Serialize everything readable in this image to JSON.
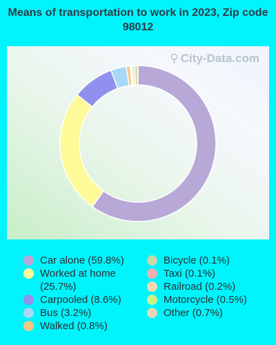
{
  "chart_data": {
    "type": "pie",
    "title": "Means of transportation to work in 2023, Zip code 98012",
    "watermark": "City-Data.com",
    "donut": true,
    "slices": [
      {
        "label": "Car alone",
        "value": 59.8,
        "display": "Car alone (59.8%)",
        "color": "#b8a8d8"
      },
      {
        "label": "Worked at home",
        "value": 25.7,
        "display": "Worked at home (25.7%)",
        "color": "#fffa98"
      },
      {
        "label": "Carpooled",
        "value": 8.6,
        "display": "Carpooled (8.6%)",
        "color": "#9090ee"
      },
      {
        "label": "Bus",
        "value": 3.2,
        "display": "Bus (3.2%)",
        "color": "#a8d8f8"
      },
      {
        "label": "Walked",
        "value": 0.8,
        "display": "Walked (0.8%)",
        "color": "#f8c880"
      },
      {
        "label": "Bicycle",
        "value": 0.1,
        "display": "Bicycle (0.1%)",
        "color": "#c8d8a8"
      },
      {
        "label": "Taxi",
        "value": 0.1,
        "display": "Taxi (0.1%)",
        "color": "#f0b0b0"
      },
      {
        "label": "Railroad",
        "value": 0.2,
        "display": "Railroad (0.2%)",
        "color": "#f8d8b0"
      },
      {
        "label": "Motorcycle",
        "value": 0.5,
        "display": "Motorcycle (0.5%)",
        "color": "#d0f088"
      },
      {
        "label": "Other",
        "value": 0.7,
        "display": "Other (0.7%)",
        "color": "#e0d8b8"
      }
    ],
    "slice_order": [
      "Car alone",
      "Worked at home",
      "Carpooled",
      "Bus",
      "Walked",
      "Bicycle",
      "Taxi",
      "Railroad",
      "Motorcycle",
      "Other"
    ],
    "legend_columns": [
      [
        "Car alone",
        "Worked at home",
        "Carpooled",
        "Bus",
        "Walked"
      ],
      [
        "Bicycle",
        "Taxi",
        "Railroad",
        "Motorcycle",
        "Other"
      ]
    ]
  }
}
